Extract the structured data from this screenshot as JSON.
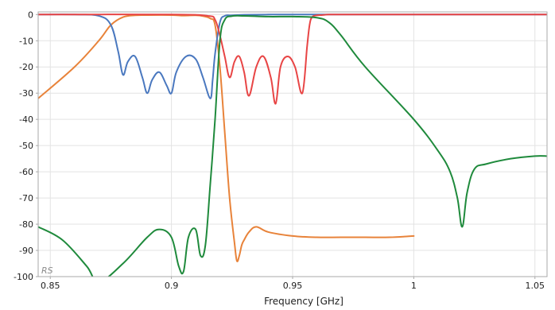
{
  "chart_data": {
    "type": "line",
    "title": "",
    "xlabel": "Frequency [GHz]",
    "ylabel": "",
    "xlim": [
      0.845,
      1.055
    ],
    "ylim": [
      -100,
      1
    ],
    "x_ticks": [
      0.85,
      0.9,
      0.95,
      1,
      1.05
    ],
    "x_tick_labels": [
      "0.85",
      "0.9",
      "0.95",
      "1",
      "1.05"
    ],
    "y_ticks": [
      0,
      -10,
      -20,
      -30,
      -40,
      -50,
      -60,
      -70,
      -80,
      -90,
      -100
    ],
    "y_tick_labels": [
      "0",
      "-10",
      "-20",
      "-30",
      "-40",
      "-50",
      "-60",
      "-70",
      "-80",
      "-90",
      "-100"
    ],
    "grid": true,
    "logo_text": "RS",
    "series": [
      {
        "color": "#e8833a",
        "x": [
          0.845,
          0.86,
          0.87,
          0.875,
          0.88,
          0.885,
          0.89,
          0.9,
          0.905,
          0.91,
          0.913,
          0.916,
          0.918,
          0.92,
          0.922,
          0.924,
          0.926,
          0.927,
          0.928,
          0.929,
          0.93,
          0.932,
          0.935,
          0.94,
          0.95,
          0.96,
          0.97,
          0.98,
          0.99,
          1.0
        ],
        "y": [
          -32,
          -20,
          -10,
          -4,
          -1,
          -0.3,
          -0.2,
          -0.2,
          -0.4,
          -0.3,
          -0.6,
          -1.5,
          -4,
          -20,
          -45,
          -70,
          -87,
          -94,
          -92,
          -88,
          -86,
          -83,
          -81,
          -83,
          -84.5,
          -85,
          -85,
          -85,
          -85,
          -84.5
        ]
      },
      {
        "color": "#4a78bf",
        "x": [
          0.845,
          0.86,
          0.87,
          0.875,
          0.878,
          0.88,
          0.882,
          0.885,
          0.888,
          0.89,
          0.892,
          0.895,
          0.898,
          0.9,
          0.902,
          0.906,
          0.91,
          0.913,
          0.916,
          0.917,
          0.918,
          0.92,
          0.922,
          0.925,
          0.93,
          0.94,
          0.95,
          0.97,
          1.0,
          1.055
        ],
        "y": [
          0,
          0,
          -0.5,
          -4,
          -14,
          -23,
          -18,
          -16,
          -24,
          -30,
          -25,
          -22,
          -27,
          -30,
          -22,
          -16,
          -17,
          -24,
          -32,
          -25,
          -15,
          -3,
          -0.5,
          -0.3,
          -0.1,
          0,
          0,
          0,
          0,
          0
        ]
      },
      {
        "color": "#e84545",
        "x": [
          0.845,
          0.9,
          0.915,
          0.918,
          0.92,
          0.922,
          0.924,
          0.926,
          0.928,
          0.93,
          0.932,
          0.935,
          0.938,
          0.941,
          0.943,
          0.945,
          0.948,
          0.951,
          0.954,
          0.956,
          0.957,
          0.958,
          0.96,
          0.962,
          0.965,
          0.97,
          0.98,
          1.0,
          1.055
        ],
        "y": [
          0,
          0,
          -0.5,
          -2,
          -8,
          -16,
          -24,
          -18,
          -16,
          -22,
          -31,
          -20,
          -16,
          -24,
          -34,
          -20,
          -16,
          -20,
          -30,
          -12,
          -4,
          -1,
          -0.3,
          -0.2,
          0,
          0,
          0,
          0,
          0
        ]
      },
      {
        "color": "#1f8a3c",
        "x": [
          0.845,
          0.855,
          0.865,
          0.87,
          0.88,
          0.89,
          0.895,
          0.9,
          0.903,
          0.905,
          0.907,
          0.91,
          0.912,
          0.914,
          0.916,
          0.918,
          0.92,
          0.922,
          0.925,
          0.93,
          0.94,
          0.95,
          0.96,
          0.965,
          0.97,
          0.98,
          1.0,
          1.01,
          1.015,
          1.018,
          1.02,
          1.022,
          1.025,
          1.03,
          1.04,
          1.05,
          1.055
        ],
        "y": [
          -81,
          -86,
          -96,
          -102,
          -95,
          -85,
          -82,
          -85,
          -96,
          -98,
          -85,
          -82,
          -92,
          -88,
          -65,
          -40,
          -10,
          -2,
          -0.6,
          -0.5,
          -0.8,
          -0.8,
          -1.2,
          -3,
          -8,
          -20,
          -40,
          -52,
          -60,
          -70,
          -81,
          -68,
          -59,
          -57,
          -55,
          -54,
          -54
        ]
      }
    ]
  }
}
